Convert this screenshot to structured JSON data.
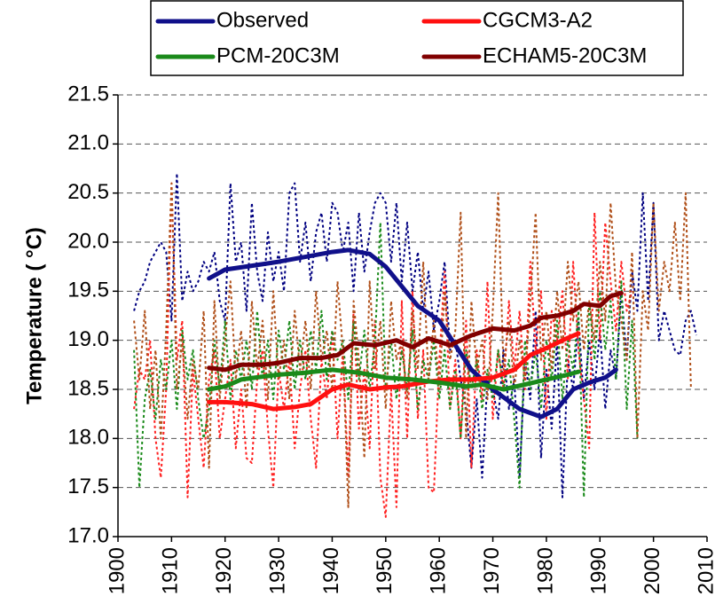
{
  "chart_data": {
    "type": "line",
    "y_label": "Temperature ( °C)",
    "xlim": [
      1900,
      2010
    ],
    "xticks": [
      1900,
      1910,
      1920,
      1930,
      1940,
      1950,
      1960,
      1970,
      1980,
      1990,
      2000,
      2010
    ],
    "ylim": [
      17,
      21.5
    ],
    "yticks": [
      {
        "value": 17,
        "label": "17.0"
      },
      17.5,
      {
        "value": 18,
        "label": "18.0"
      },
      18.5,
      {
        "value": 19,
        "label": "19.0"
      },
      19.5,
      {
        "value": 20,
        "label": "20.0"
      },
      20.5,
      {
        "value": 21,
        "label": "21.0"
      },
      21.5
    ],
    "grid": true,
    "legend": "top",
    "x": [
      1903,
      1904,
      1905,
      1906,
      1907,
      1908,
      1909,
      1910,
      1911,
      1912,
      1913,
      1914,
      1915,
      1916,
      1917,
      1918,
      1919,
      1920,
      1921,
      1922,
      1923,
      1924,
      1925,
      1926,
      1927,
      1928,
      1929,
      1930,
      1931,
      1932,
      1933,
      1934,
      1935,
      1936,
      1937,
      1938,
      1939,
      1940,
      1941,
      1942,
      1943,
      1944,
      1945,
      1946,
      1947,
      1948,
      1949,
      1950,
      1951,
      1952,
      1953,
      1954,
      1955,
      1956,
      1957,
      1958,
      1959,
      1960,
      1961,
      1962,
      1963,
      1964,
      1965,
      1966,
      1967,
      1968,
      1969,
      1970,
      1971,
      1972,
      1973,
      1974,
      1975,
      1976,
      1977,
      1978,
      1979,
      1980,
      1981,
      1982,
      1983,
      1984,
      1985,
      1986,
      1987,
      1988,
      1989,
      1990,
      1991,
      1992,
      1993,
      1994,
      1995,
      1996,
      1997,
      1998,
      1999,
      2000,
      2001,
      2002,
      2003,
      2004,
      2005,
      2006,
      2007,
      2008
    ],
    "series": [
      {
        "color": "#000080",
        "style": "dotted",
        "values": [
          19.3,
          19.5,
          19.6,
          19.8,
          19.9,
          20.0,
          19.9,
          19.2,
          20.7,
          19.4,
          19.7,
          19.5,
          19.6,
          19.8,
          19.7,
          19.9,
          19.4,
          19.2,
          20.6,
          19.8,
          20.0,
          19.3,
          20.4,
          19.7,
          19.4,
          20.1,
          19.6,
          19.9,
          19.5,
          20.5,
          20.6,
          19.8,
          20.2,
          19.6,
          20.1,
          20.3,
          19.8,
          20.4,
          20.3,
          19.9,
          20.2,
          19.5,
          20.3,
          19.7,
          20.1,
          20.4,
          20.5,
          20.4,
          19.8,
          20.4,
          19.6,
          20.2,
          19.5,
          19.9,
          19.3,
          19.7,
          19.1,
          19.4,
          19.8,
          18.9,
          19.0,
          18.6,
          18.3,
          17.7,
          18.4,
          17.6,
          18.6,
          18.5,
          18.2,
          18.9,
          18.3,
          18.6,
          17.6,
          18.8,
          18.4,
          19.3,
          17.8,
          18.7,
          18.1,
          19.0,
          17.4,
          18.8,
          18.5,
          19.2,
          18.4,
          19.0,
          18.5,
          19.1,
          18.3,
          18.9,
          18.6,
          19.5,
          18.8,
          19.7,
          19.3,
          20.5,
          19.4,
          20.4,
          19.0,
          19.3,
          19.1,
          18.9,
          18.85,
          19.2,
          19.3,
          19.05
        ]
      },
      {
        "color": "#ff2020",
        "style": "dotted",
        "values": [
          18.3,
          18.7,
          18.6,
          19.0,
          18.0,
          17.6,
          18.5,
          20.6,
          18.8,
          19.2,
          17.4,
          18.7,
          18.2,
          17.7,
          18.6,
          18.9,
          18.0,
          18.4,
          18.8,
          17.9,
          18.5,
          17.8,
          17.75,
          18.6,
          18.9,
          18.1,
          17.5,
          18.7,
          18.3,
          18.8,
          17.9,
          18.5,
          18.9,
          18.2,
          17.7,
          18.8,
          18.4,
          19.1,
          18.0,
          18.9,
          17.6,
          19.3,
          18.1,
          18.7,
          17.9,
          19.2,
          17.6,
          17.2,
          18.5,
          17.3,
          19.4,
          18.0,
          19.5,
          18.2,
          18.9,
          17.5,
          17.45,
          18.8,
          19.7,
          18.3,
          18.8,
          18.0,
          19.2,
          17.7,
          18.9,
          18.4,
          19.6,
          18.2,
          18.9,
          18.5,
          19.4,
          18.7,
          19.3,
          18.5,
          19.8,
          18.9,
          19.5,
          18.2,
          19.3,
          19.0,
          19.5,
          18.6,
          19.8,
          18.9,
          18.4,
          17.9,
          20.3,
          19.0,
          20.2,
          19.6,
          19.1,
          19.8,
          19.3,
          19.5,
          null,
          null,
          null,
          null,
          null,
          null,
          null,
          null,
          null,
          null,
          null,
          null
        ]
      },
      {
        "color": "#1a8a1a",
        "style": "dotted",
        "values": [
          18.9,
          17.5,
          18.4,
          18.7,
          18.2,
          18.8,
          18.5,
          19.0,
          18.3,
          19.1,
          18.6,
          18.9,
          18.4,
          18.0,
          18.3,
          19.0,
          18.5,
          19.2,
          18.4,
          18.9,
          18.6,
          19.0,
          18.5,
          19.3,
          18.6,
          19.0,
          18.4,
          19.1,
          18.7,
          19.2,
          18.5,
          19.0,
          18.6,
          19.1,
          18.7,
          19.3,
          18.6,
          19.1,
          18.8,
          19.0,
          18.4,
          19.2,
          18.6,
          19.1,
          18.5,
          19.0,
          20.2,
          18.5,
          19.0,
          18.4,
          18.9,
          18.5,
          19.1,
          18.3,
          18.8,
          18.6,
          19.0,
          18.4,
          18.9,
          18.3,
          18.7,
          18.0,
          18.9,
          18.5,
          18.8,
          18.3,
          18.7,
          18.4,
          18.9,
          18.5,
          18.8,
          18.2,
          17.5,
          19.0,
          18.5,
          18.9,
          18.3,
          19.0,
          18.6,
          19.2,
          18.4,
          19.0,
          18.7,
          19.3,
          17.4,
          19.4,
          18.8,
          19.5,
          18.9,
          19.4,
          18.6,
          19.6,
          18.3,
          19.2,
          18.0,
          null,
          null,
          null,
          null,
          null,
          null,
          null,
          null,
          null,
          null,
          null
        ]
      },
      {
        "color": "#b0501a",
        "style": "dotted",
        "values": [
          19.2,
          18.6,
          19.3,
          18.3,
          18.9,
          18.0,
          19.1,
          20.6,
          18.5,
          19.0,
          18.2,
          18.8,
          18.5,
          19.3,
          17.7,
          19.4,
          18.4,
          19.0,
          19.6,
          18.6,
          19.1,
          18.3,
          19.4,
          18.7,
          19.2,
          18.4,
          19.5,
          18.6,
          19.0,
          18.4,
          19.3,
          18.7,
          19.2,
          18.5,
          19.5,
          18.8,
          19.1,
          18.5,
          19.6,
          18.9,
          17.3,
          19.4,
          18.8,
          17.8,
          19.6,
          18.7,
          19.2,
          18.3,
          19.4,
          18.8,
          19.0,
          18.4,
          19.3,
          18.7,
          19.8,
          18.6,
          19.2,
          18.5,
          19.5,
          18.8,
          19.1,
          20.3,
          18.0,
          19.4,
          18.7,
          19.0,
          18.4,
          19.3,
          20.5,
          18.7,
          19.2,
          18.5,
          19.0,
          18.6,
          19.4,
          20.3,
          18.8,
          19.3,
          18.7,
          19.5,
          18.9,
          19.8,
          19.2,
          19.6,
          18.9,
          19.4,
          19.0,
          19.8,
          19.2,
          20.4,
          19.5,
          19.2,
          18.8,
          19.9,
          18.0,
          19.5,
          19.1,
          20.4,
          19.3,
          19.8,
          19.5,
          20.2,
          19.4,
          20.5,
          18.5,
          null
        ]
      },
      {
        "name": "Observed",
        "color": "#10108a",
        "x": [
          1917,
          1920,
          1925,
          1930,
          1935,
          1940,
          1943,
          1947,
          1950,
          1953,
          1956,
          1960,
          1963,
          1966,
          1970,
          1975,
          1979,
          1982,
          1985,
          1988,
          1991,
          1993
        ],
        "values": [
          19.63,
          19.72,
          19.76,
          19.8,
          19.85,
          19.9,
          19.92,
          19.88,
          19.75,
          19.55,
          19.35,
          19.2,
          18.95,
          18.7,
          18.5,
          18.3,
          18.22,
          18.3,
          18.5,
          18.57,
          18.62,
          18.7
        ]
      },
      {
        "name": "CGCM3-A2",
        "color": "#ff1010",
        "x": [
          1917,
          1920,
          1925,
          1929,
          1933,
          1936,
          1940,
          1943,
          1947,
          1950,
          1953,
          1958,
          1962,
          1966,
          1970,
          1974,
          1977,
          1980,
          1983,
          1986
        ],
        "values": [
          18.37,
          18.37,
          18.35,
          18.3,
          18.32,
          18.35,
          18.5,
          18.55,
          18.5,
          18.52,
          18.53,
          18.58,
          18.6,
          18.6,
          18.62,
          18.7,
          18.85,
          18.92,
          19.0,
          19.07
        ]
      },
      {
        "name": "PCM-20C3M",
        "color": "#1a8a1a",
        "x": [
          1917,
          1920,
          1923,
          1927,
          1930,
          1935,
          1940,
          1945,
          1950,
          1955,
          1960,
          1965,
          1968,
          1972,
          1976,
          1980,
          1984,
          1986
        ],
        "values": [
          18.5,
          18.53,
          18.6,
          18.63,
          18.65,
          18.67,
          18.7,
          18.67,
          18.62,
          18.6,
          18.57,
          18.53,
          18.55,
          18.5,
          18.55,
          18.6,
          18.65,
          18.68
        ]
      },
      {
        "name": "ECHAM5-20C3M",
        "color": "#800000",
        "x": [
          1917,
          1920,
          1923,
          1927,
          1930,
          1934,
          1938,
          1941,
          1944,
          1948,
          1952,
          1955,
          1958,
          1962,
          1966,
          1970,
          1974,
          1977,
          1979,
          1982,
          1985,
          1987,
          1990,
          1992,
          1994
        ],
        "values": [
          18.72,
          18.7,
          18.75,
          18.75,
          18.77,
          18.82,
          18.82,
          18.85,
          18.97,
          18.95,
          19.0,
          18.93,
          19.02,
          18.95,
          19.05,
          19.12,
          19.1,
          19.15,
          19.23,
          19.25,
          19.3,
          19.37,
          19.35,
          19.45,
          19.48
        ]
      }
    ]
  }
}
